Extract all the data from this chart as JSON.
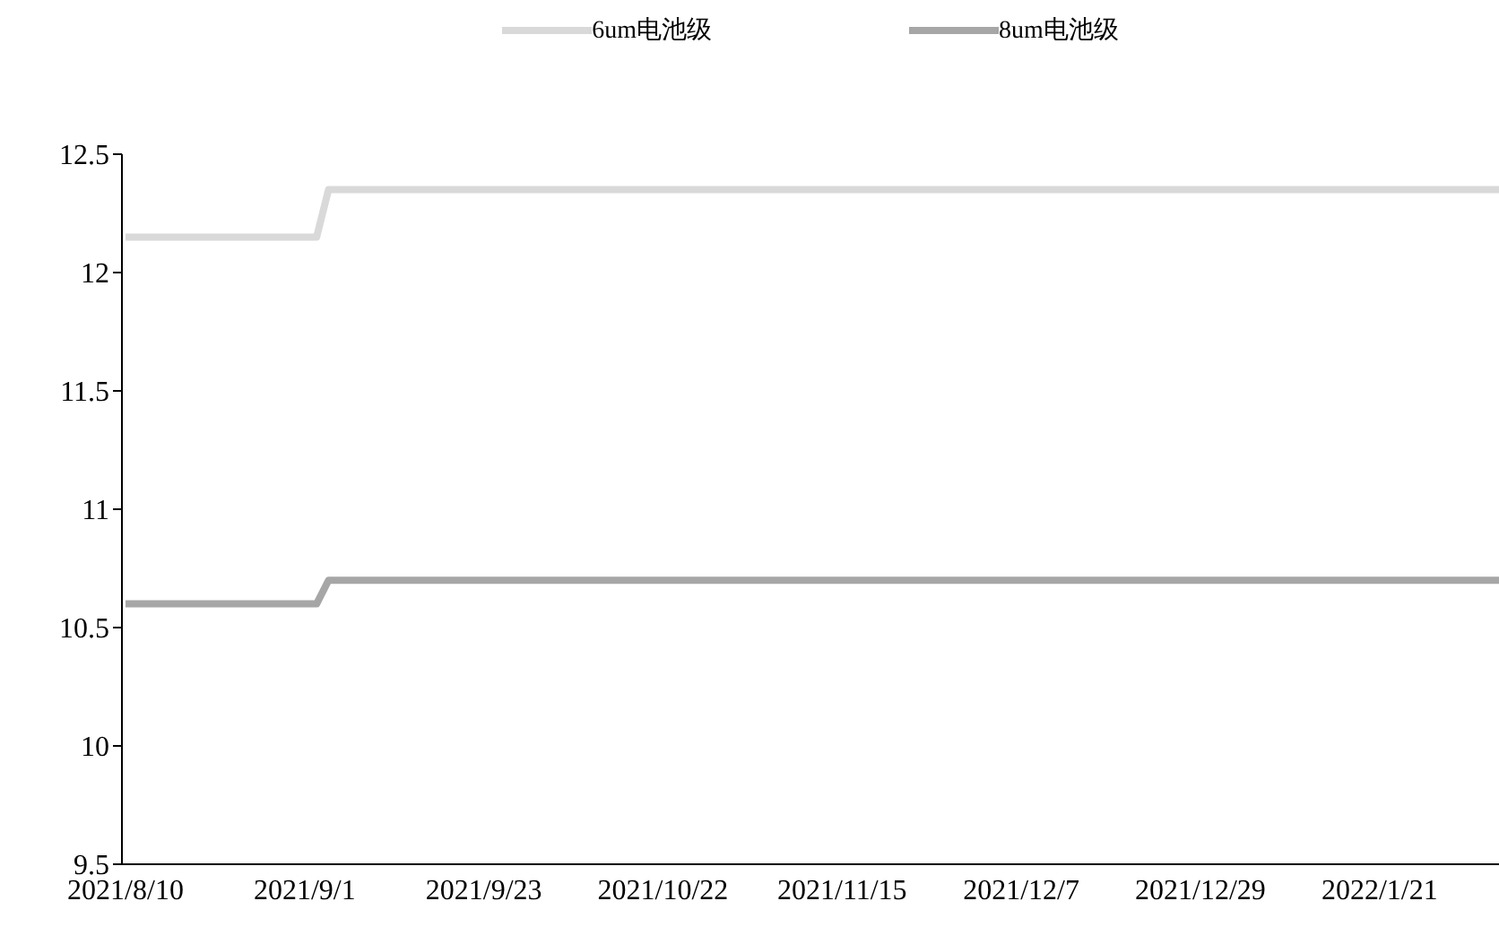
{
  "chart_data": {
    "type": "line",
    "categories": [
      "2021/8/10",
      null,
      null,
      null,
      null,
      null,
      null,
      null,
      null,
      null,
      null,
      null,
      null,
      null,
      null,
      "2021/9/1",
      null,
      null,
      null,
      null,
      null,
      null,
      null,
      null,
      null,
      null,
      null,
      null,
      null,
      null,
      "2021/9/23",
      null,
      null,
      null,
      null,
      null,
      null,
      null,
      null,
      null,
      null,
      null,
      null,
      null,
      null,
      "2021/10/22",
      null,
      null,
      null,
      null,
      null,
      null,
      null,
      null,
      null,
      null,
      null,
      null,
      null,
      null,
      "2021/11/15",
      null,
      null,
      null,
      null,
      null,
      null,
      null,
      null,
      null,
      null,
      null,
      null,
      null,
      null,
      "2021/12/7",
      null,
      null,
      null,
      null,
      null,
      null,
      null,
      null,
      null,
      null,
      null,
      null,
      null,
      null,
      "2021/12/29",
      null,
      null,
      null,
      null,
      null,
      null,
      null,
      null,
      null,
      null,
      null,
      null,
      null,
      null,
      "2022/1/21",
      null,
      null,
      null,
      null,
      null,
      null,
      null,
      null,
      null,
      null
    ],
    "series": [
      {
        "name": "6um电池级",
        "color": "#d9d9d9",
        "values": [
          12.15,
          12.15,
          12.15,
          12.15,
          12.15,
          12.15,
          12.15,
          12.15,
          12.15,
          12.15,
          12.15,
          12.15,
          12.15,
          12.15,
          12.15,
          12.15,
          12.15,
          12.35,
          12.35,
          12.35,
          12.35,
          12.35,
          12.35,
          12.35,
          12.35,
          12.35,
          12.35,
          12.35,
          12.35,
          12.35,
          12.35,
          12.35,
          12.35,
          12.35,
          12.35,
          12.35,
          12.35,
          12.35,
          12.35,
          12.35,
          12.35,
          12.35,
          12.35,
          12.35,
          12.35,
          12.35,
          12.35,
          12.35,
          12.35,
          12.35,
          12.35,
          12.35,
          12.35,
          12.35,
          12.35,
          12.35,
          12.35,
          12.35,
          12.35,
          12.35,
          12.35,
          12.35,
          12.35,
          12.35,
          12.35,
          12.35,
          12.35,
          12.35,
          12.35,
          12.35,
          12.35,
          12.35,
          12.35,
          12.35,
          12.35,
          12.35,
          12.35,
          12.35,
          12.35,
          12.35,
          12.35,
          12.35,
          12.35,
          12.35,
          12.35,
          12.35,
          12.35,
          12.35,
          12.35,
          12.35,
          12.35,
          12.35,
          12.35,
          12.35,
          12.35,
          12.35,
          12.35,
          12.35,
          12.35,
          12.35,
          12.35,
          12.35,
          12.35,
          12.35,
          12.35,
          12.35,
          12.35,
          12.35,
          12.35,
          12.35,
          12.35,
          12.35,
          12.35,
          12.35,
          12.35,
          12.35
        ]
      },
      {
        "name": "8um电池级",
        "color": "#a6a6a6",
        "values": [
          10.6,
          10.6,
          10.6,
          10.6,
          10.6,
          10.6,
          10.6,
          10.6,
          10.6,
          10.6,
          10.6,
          10.6,
          10.6,
          10.6,
          10.6,
          10.6,
          10.6,
          10.7,
          10.7,
          10.7,
          10.7,
          10.7,
          10.7,
          10.7,
          10.7,
          10.7,
          10.7,
          10.7,
          10.7,
          10.7,
          10.7,
          10.7,
          10.7,
          10.7,
          10.7,
          10.7,
          10.7,
          10.7,
          10.7,
          10.7,
          10.7,
          10.7,
          10.7,
          10.7,
          10.7,
          10.7,
          10.7,
          10.7,
          10.7,
          10.7,
          10.7,
          10.7,
          10.7,
          10.7,
          10.7,
          10.7,
          10.7,
          10.7,
          10.7,
          10.7,
          10.7,
          10.7,
          10.7,
          10.7,
          10.7,
          10.7,
          10.7,
          10.7,
          10.7,
          10.7,
          10.7,
          10.7,
          10.7,
          10.7,
          10.7,
          10.7,
          10.7,
          10.7,
          10.7,
          10.7,
          10.7,
          10.7,
          10.7,
          10.7,
          10.7,
          10.7,
          10.7,
          10.7,
          10.7,
          10.7,
          10.7,
          10.7,
          10.7,
          10.7,
          10.7,
          10.7,
          10.7,
          10.7,
          10.7,
          10.7,
          10.7,
          10.7,
          10.7,
          10.7,
          10.7,
          10.7,
          10.7,
          10.7,
          10.7,
          10.7,
          10.7,
          10.7,
          10.7,
          10.7,
          10.7,
          10.7
        ]
      }
    ],
    "ylim": [
      9.5,
      12.5
    ],
    "yticks": [
      9.5,
      10,
      10.5,
      11,
      11.5,
      12,
      12.5
    ],
    "grid": false,
    "legend": "top",
    "marker": "none",
    "line_style": "solid"
  }
}
